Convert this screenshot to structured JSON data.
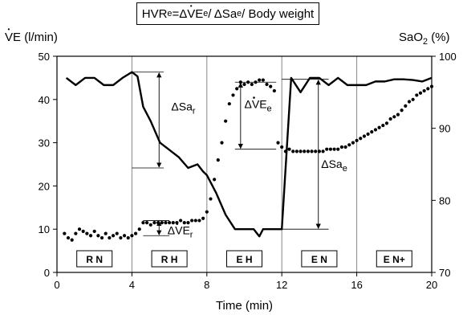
{
  "formula": {
    "lead": "HVR",
    "lead_sub": "e",
    "eq": " = ",
    "delta1": "Δ",
    "v_char": "V",
    "ve_rest": "E",
    "ve_sub": "e",
    "div1": " / ΔSa",
    "sa_sub": "e",
    "div2": " / Body weight"
  },
  "y_left_title": {
    "v_char": "V",
    "rest": "E (l/min)"
  },
  "y_right_title": {
    "lead": "SaO",
    "sub": "2",
    "rest": " (%)"
  },
  "colors": {
    "line": "#000000",
    "frame": "#000000",
    "vline": "#888888"
  },
  "chart_data": {
    "type": "line",
    "xlabel": "Time (min)",
    "xlim": [
      0,
      20
    ],
    "x_ticks": [
      0,
      4,
      8,
      12,
      16,
      20
    ],
    "y_left_lim": [
      0,
      50
    ],
    "y_left_ticks": [
      0,
      10,
      20,
      30,
      40,
      50
    ],
    "y_right_lim": [
      70,
      100
    ],
    "y_right_ticks": [
      70,
      80,
      90,
      100
    ],
    "phase_boundaries": [
      4,
      8,
      12,
      16
    ],
    "phases": [
      {
        "label": "R N",
        "x": 2
      },
      {
        "label": "R H",
        "x": 6
      },
      {
        "label": "E H",
        "x": 10
      },
      {
        "label": "E N",
        "x": 14
      },
      {
        "label": "E N+",
        "x": 18
      }
    ],
    "series": [
      {
        "style": "solid",
        "axis": "right",
        "x": [
          0.5,
          1.0,
          1.5,
          2.0,
          2.5,
          3.0,
          3.5,
          4.0,
          4.3,
          4.6,
          5.0,
          5.5,
          6.0,
          6.5,
          7.0,
          7.5,
          7.8,
          8.0,
          8.5,
          9.0,
          9.5,
          10.0,
          10.5,
          10.8,
          11.0,
          11.5,
          12.0,
          12.5,
          13.0,
          13.5,
          14.0,
          14.5,
          15.0,
          15.5,
          16.0,
          16.5,
          17.0,
          17.5,
          18.0,
          18.5,
          19.0,
          19.5,
          20.0
        ],
        "y": [
          97.0,
          96.0,
          97.0,
          97.0,
          96.0,
          96.0,
          97.0,
          97.8,
          97.2,
          93.0,
          91.0,
          88.0,
          87.0,
          86.0,
          84.5,
          85.0,
          84.0,
          83.5,
          81.0,
          78.0,
          76.0,
          76.0,
          76.0,
          75.0,
          76.0,
          76.0,
          76.0,
          97.0,
          95.0,
          97.0,
          97.0,
          96.0,
          97.0,
          96.0,
          96.0,
          96.0,
          96.5,
          96.5,
          96.8,
          96.8,
          96.7,
          96.5,
          97.0
        ]
      },
      {
        "style": "dotted",
        "axis": "left",
        "x": [
          0.4,
          0.6,
          0.8,
          1.0,
          1.2,
          1.4,
          1.6,
          1.8,
          2.0,
          2.2,
          2.4,
          2.6,
          2.8,
          3.0,
          3.2,
          3.4,
          3.6,
          3.8,
          4.0,
          4.2,
          4.4,
          4.6,
          4.8,
          5.0,
          5.2,
          5.4,
          5.6,
          5.8,
          6.0,
          6.2,
          6.4,
          6.6,
          6.8,
          7.0,
          7.2,
          7.4,
          7.6,
          7.8,
          8.0,
          8.2,
          8.4,
          8.6,
          8.8,
          9.0,
          9.2,
          9.4,
          9.6,
          9.8,
          10.0,
          10.2,
          10.4,
          10.6,
          10.8,
          11.0,
          11.2,
          11.4,
          11.6,
          11.8,
          12.0,
          12.2,
          12.4,
          12.6,
          12.8,
          13.0,
          13.2,
          13.4,
          13.6,
          13.8,
          14.0,
          14.2,
          14.4,
          14.6,
          14.8,
          15.0,
          15.2,
          15.4,
          15.6,
          15.8,
          16.0,
          16.2,
          16.4,
          16.6,
          16.8,
          17.0,
          17.2,
          17.4,
          17.6,
          17.8,
          18.0,
          18.2,
          18.4,
          18.6,
          18.8,
          19.0,
          19.2,
          19.4,
          19.6,
          19.8,
          20.0
        ],
        "y": [
          9.0,
          8.0,
          7.5,
          9.0,
          10.0,
          9.5,
          9.0,
          8.5,
          9.5,
          8.5,
          8.0,
          9.0,
          8.0,
          8.5,
          9.0,
          8.0,
          8.5,
          8.0,
          8.5,
          9.0,
          10.0,
          11.5,
          11.5,
          11.0,
          11.5,
          11.5,
          11.5,
          11.5,
          11.5,
          11.5,
          11.5,
          12.0,
          11.5,
          11.5,
          12.0,
          12.0,
          12.0,
          12.5,
          14.0,
          17.0,
          21.5,
          26.0,
          30.0,
          35.0,
          39.0,
          41.0,
          42.5,
          44.0,
          43.5,
          44.0,
          43.5,
          44.0,
          44.5,
          44.5,
          43.5,
          43.0,
          42.0,
          30.0,
          29.0,
          28.0,
          28.5,
          28.0,
          28.0,
          28.0,
          28.0,
          28.0,
          28.0,
          28.0,
          28.0,
          28.0,
          28.5,
          28.5,
          28.5,
          28.5,
          29.0,
          29.0,
          29.5,
          30.0,
          30.5,
          31.0,
          31.5,
          32.0,
          32.5,
          33.0,
          33.5,
          34.0,
          34.5,
          35.5,
          36.0,
          36.5,
          37.5,
          38.5,
          39.5,
          40.0,
          41.0,
          41.5,
          42.0,
          42.5,
          43.0
        ]
      }
    ],
    "annotations": [
      {
        "label_main": "ΔSa",
        "label_sub": "r",
        "axis": "right",
        "x0": 4.0,
        "x1": 5.7,
        "y_top": 97.8,
        "y_bottom": 84.5,
        "arrow_x": 5.45,
        "label_x": 6.1,
        "label_y": 92.5
      },
      {
        "label_main": "ΔV",
        "label_dot": true,
        "label_mid": "E",
        "label_sub": "r",
        "axis": "left",
        "x0": 4.6,
        "x1": 6.0,
        "y_top": 12.0,
        "y_bottom": 8.5,
        "arrow_x": 5.45,
        "label_x": 5.9,
        "label_y": 8.8
      },
      {
        "label_main": "ΔV",
        "label_dot": true,
        "label_mid": "E",
        "label_sub": "e",
        "axis": "left",
        "x0": 9.5,
        "x1": 11.7,
        "y_top": 44.0,
        "y_bottom": 28.5,
        "arrow_x": 9.8,
        "label_x": 10.0,
        "label_y": 38.0
      },
      {
        "label_main": "ΔSa",
        "label_sub": "e",
        "axis": "right",
        "x0": 12.0,
        "x1": 14.5,
        "y_top": 96.8,
        "y_bottom": 76.0,
        "arrow_x": 13.95,
        "label_x": 14.1,
        "label_y": 84.5
      }
    ]
  }
}
